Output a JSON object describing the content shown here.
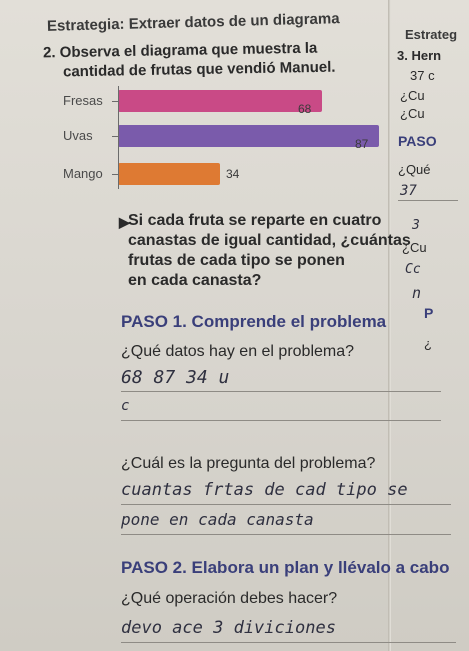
{
  "header": {
    "strategy": "Estrategia: Extraer datos de un diagrama",
    "strategy_right": "Estrateg"
  },
  "problem2": {
    "intro_line1": "2. Observa el diagrama que muestra la",
    "intro_line2": "cantidad de frutas que vendió Manuel.",
    "question_line1": "Si cada fruta se reparte en cuatro",
    "question_line2": "canastas de igual cantidad, ¿cuántas",
    "question_line3": "frutas de cada tipo se ponen",
    "question_line4": "en cada canasta?"
  },
  "chart_data": {
    "type": "bar",
    "orientation": "horizontal",
    "categories": [
      "Fresas",
      "Uvas",
      "Mango"
    ],
    "values": [
      68,
      87,
      34
    ],
    "colors": [
      "#c94a86",
      "#7a5bab",
      "#de7a33"
    ],
    "data_labels": [
      "68",
      "87",
      "34"
    ]
  },
  "paso1": {
    "title": "PASO 1. Comprende el problema",
    "q1": "¿Qué datos hay en el problema?",
    "a1": "68   87   34   u",
    "a1b": "c",
    "q2": "¿Cuál es la pregunta del problema?",
    "a2_line1": "cuantas frtas de cad tipo se",
    "a2_line2": "pone en cada canasta"
  },
  "paso2": {
    "title": "PASO 2. Elabora un plan y llévalo a cabo",
    "q1": "¿Qué operación debes hacer?",
    "a1": "devo ace 3 diviciones"
  },
  "right_column": {
    "item3": "3. Hern",
    "line1": "37 c",
    "line2": "¿Cu",
    "line3": "¿Cu",
    "paso": "PASO",
    "que": "¿Qué",
    "hand1": "37",
    "hand2": "3",
    "cu": "¿Cu",
    "hand3": "Cc",
    "hand4": "n",
    "p": "P",
    "i": "¿"
  }
}
